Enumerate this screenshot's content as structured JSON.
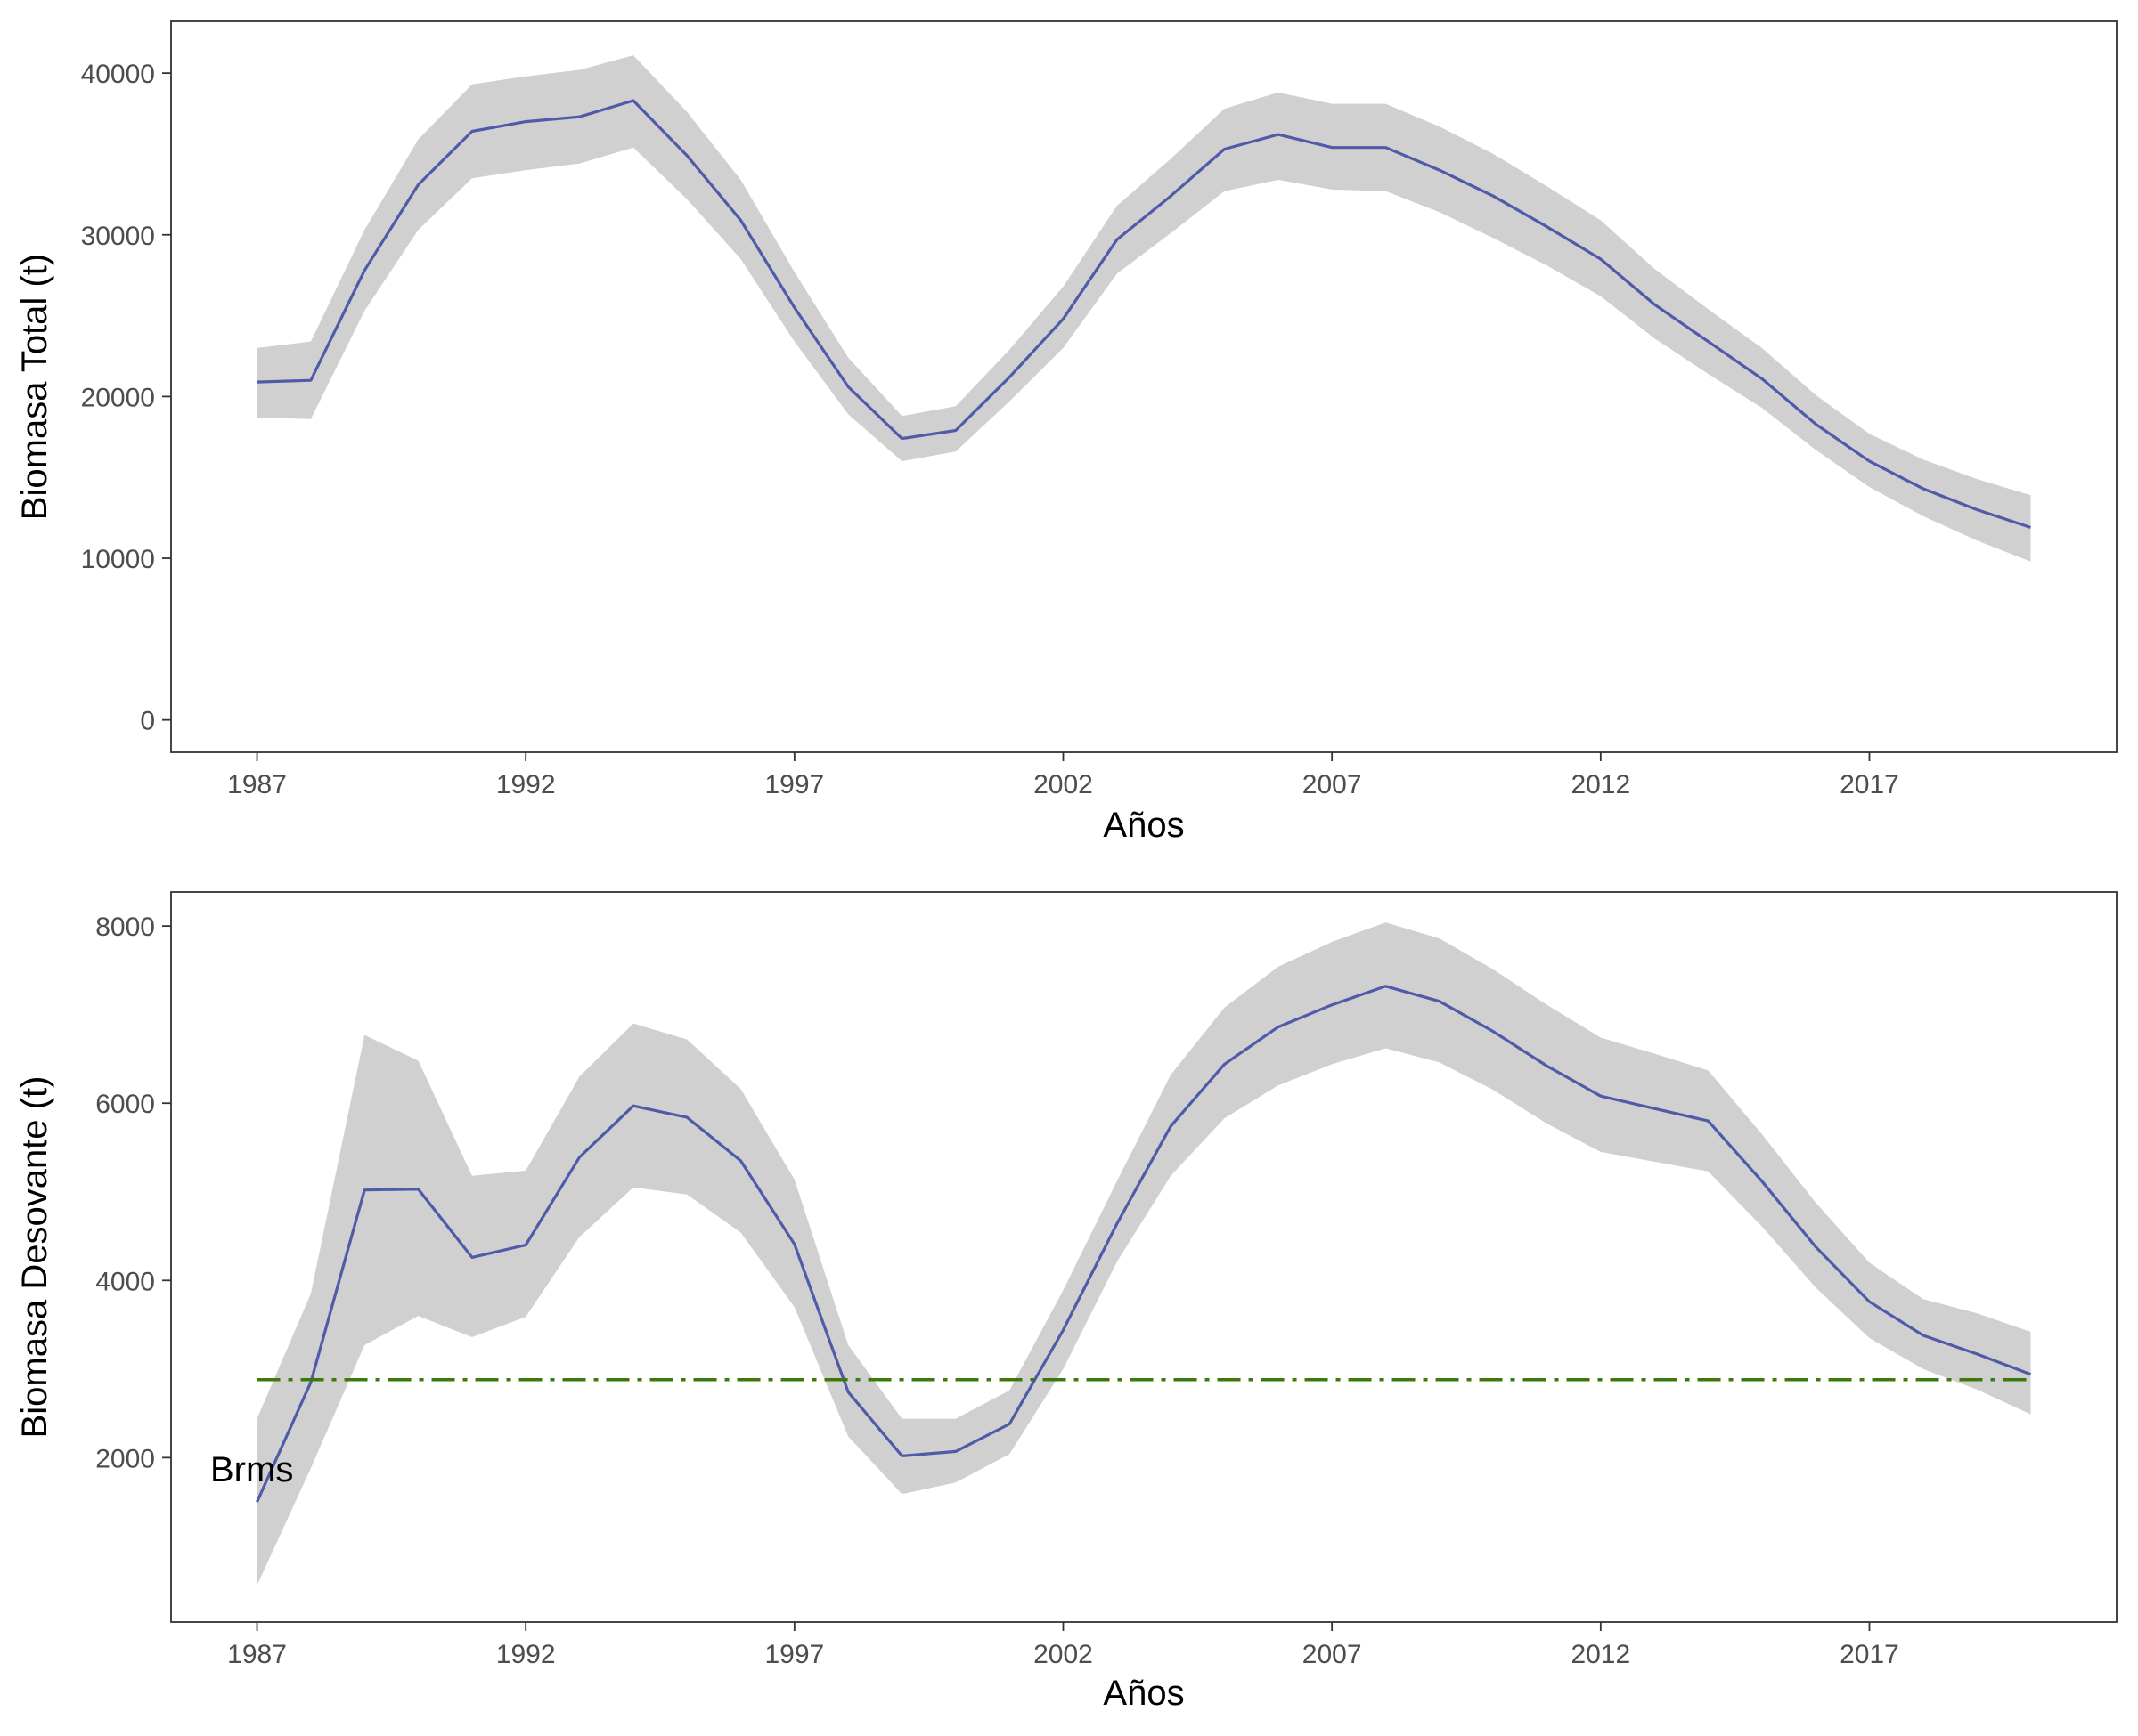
{
  "colors": {
    "line": "#4F5BA8",
    "band": "#D0D0D0",
    "reference": "#3B7A0A",
    "frame": "#333333",
    "tick_text": "#4d4d4d"
  },
  "chart_data": [
    {
      "type": "line",
      "title": "",
      "xlabel": "Años",
      "ylabel": "Biomasa Total (t)",
      "xlim": [
        1985.4,
        2021.6
      ],
      "ylim": [
        -2000,
        43200
      ],
      "x_ticks": [
        1987,
        1992,
        1997,
        2002,
        2007,
        2012,
        2017
      ],
      "y_ticks": [
        0,
        10000,
        20000,
        30000,
        40000
      ],
      "grid": false,
      "legend": "none",
      "x": [
        1987,
        1988,
        1989,
        1990,
        1991,
        1992,
        1993,
        1994,
        1995,
        1996,
        1997,
        1998,
        1999,
        2000,
        2001,
        2002,
        2003,
        2004,
        2005,
        2006,
        2007,
        2008,
        2009,
        2010,
        2011,
        2012,
        2013,
        2014,
        2015,
        2016,
        2017,
        2018,
        2019,
        2020
      ],
      "series": [
        {
          "values": [
            20900,
            21000,
            27800,
            33100,
            36400,
            37000,
            37300,
            38300,
            34900,
            30900,
            25500,
            20600,
            17400,
            17900,
            21200,
            24800,
            29700,
            32400,
            35300,
            36200,
            35400,
            35400,
            34000,
            32400,
            30500,
            28500,
            25700,
            23400,
            21100,
            18300,
            16000,
            14300,
            13000,
            11900
          ],
          "lower": [
            18700,
            18600,
            25300,
            30300,
            33500,
            34000,
            34400,
            35400,
            32200,
            28500,
            23400,
            18900,
            16000,
            16600,
            19700,
            23000,
            27600,
            30100,
            32700,
            33400,
            32800,
            32700,
            31400,
            29800,
            28100,
            26200,
            23600,
            21400,
            19300,
            16700,
            14400,
            12600,
            11100,
            9800
          ],
          "upper": [
            23000,
            23400,
            30300,
            35900,
            39300,
            39800,
            40200,
            41100,
            37600,
            33400,
            27700,
            22400,
            18800,
            19400,
            22900,
            26800,
            31800,
            34700,
            37800,
            38800,
            38100,
            38100,
            36700,
            35000,
            33000,
            30900,
            27900,
            25400,
            23000,
            20100,
            17700,
            16100,
            14900,
            13900
          ]
        }
      ]
    },
    {
      "type": "line",
      "title": "",
      "xlabel": "Años",
      "ylabel": "Biomasa Desovante (t)",
      "xlim": [
        1985.4,
        2021.6
      ],
      "ylim": [
        145,
        8383
      ],
      "x_ticks": [
        1987,
        1992,
        1997,
        2002,
        2007,
        2012,
        2017
      ],
      "y_ticks": [
        2000,
        4000,
        6000,
        8000
      ],
      "grid": false,
      "legend": "none",
      "x": [
        1987,
        1988,
        1989,
        1990,
        1991,
        1992,
        1993,
        1994,
        1995,
        1996,
        1997,
        1998,
        1999,
        2000,
        2001,
        2002,
        2003,
        2004,
        2005,
        2006,
        2007,
        2008,
        2009,
        2010,
        2011,
        2012,
        2013,
        2014,
        2015,
        2016,
        2017,
        2018,
        2019,
        2020
      ],
      "series": [
        {
          "values": [
            1500,
            2850,
            5020,
            5030,
            4260,
            4400,
            5390,
            5970,
            5840,
            5350,
            4410,
            2740,
            2020,
            2070,
            2380,
            3440,
            4640,
            5740,
            6440,
            6860,
            7110,
            7320,
            7150,
            6810,
            6420,
            6080,
            5940,
            5800,
            5120,
            4380,
            3760,
            3380,
            3170,
            2940
          ],
          "lower": [
            560,
            1880,
            3270,
            3600,
            3360,
            3590,
            4490,
            5050,
            4970,
            4540,
            3700,
            2240,
            1590,
            1720,
            2040,
            3000,
            4210,
            5180,
            5830,
            6200,
            6440,
            6620,
            6460,
            6150,
            5770,
            5450,
            5340,
            5230,
            4610,
            3920,
            3350,
            3000,
            2770,
            2490
          ],
          "upper": [
            2440,
            3850,
            6770,
            6480,
            5180,
            5240,
            6300,
            6900,
            6720,
            6160,
            5140,
            3270,
            2440,
            2440,
            2760,
            3890,
            5120,
            6320,
            7080,
            7540,
            7820,
            8040,
            7860,
            7510,
            7110,
            6740,
            6560,
            6370,
            5650,
            4880,
            4200,
            3790,
            3630,
            3420
          ]
        }
      ],
      "reference_line": {
        "label": "Brms",
        "value": 2880
      }
    }
  ]
}
